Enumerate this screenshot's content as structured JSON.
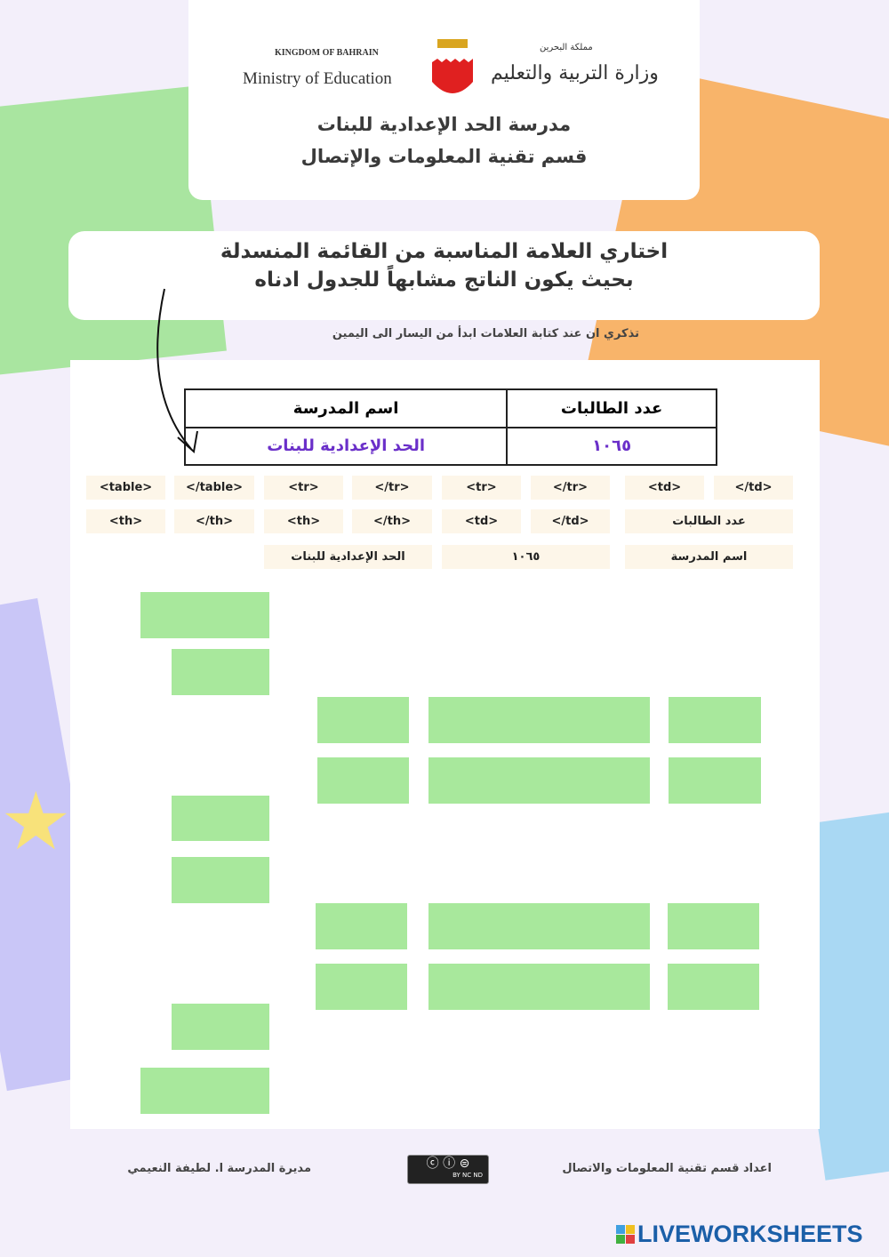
{
  "header": {
    "kingdom": "KINGDOM OF BAHRAIN",
    "ministry_en": "Ministry of Education",
    "ministry_ar": "وزارة التربية والتعليم",
    "kingdom_ar": "مملكة البحرين",
    "school": "مدرسة الحد الإعدادية للبنات",
    "department": "قسم تقنية المعلومات والإتصال"
  },
  "instructions": {
    "line1": "اختاري العلامة المناسبة من القائمة المنسدلة",
    "line2": "بحيث يكون الناتج مشابهاً للجدول ادناه",
    "note": "تذكري ان عند كتابة العلامات ابدأ من اليسار الى اليمين"
  },
  "sample_table": {
    "headers": [
      "عدد الطالبات",
      "اسم المدرسة"
    ],
    "row": [
      "١٠٦٥",
      "الحد الإعدادية للبنات"
    ]
  },
  "tokens": {
    "row1": [
      "<table>",
      "</table>",
      "<tr>",
      "</tr>",
      "<tr>",
      "</tr>",
      "<td>",
      "</td>"
    ],
    "row2": [
      "<th>",
      "</th>",
      "<th>",
      "</th>",
      "<td>",
      "</td>",
      "عدد الطالبات"
    ],
    "row3": [
      "الحد الإعدادية للبنات",
      "١٠٦٥",
      "اسم المدرسة"
    ]
  },
  "footer": {
    "prepared_by": "اعداد قسم تقنية المعلومات والاتصال",
    "principal": "مديرة المدرسة ا. لطيفة النعيمي",
    "license": "BY NC ND",
    "brand": "LIVEWORKSHEETS"
  },
  "colors": {
    "drop_box": "#a8e89c",
    "accent_text": "#6a2fc9",
    "token_bg": "#fdf6e9"
  }
}
